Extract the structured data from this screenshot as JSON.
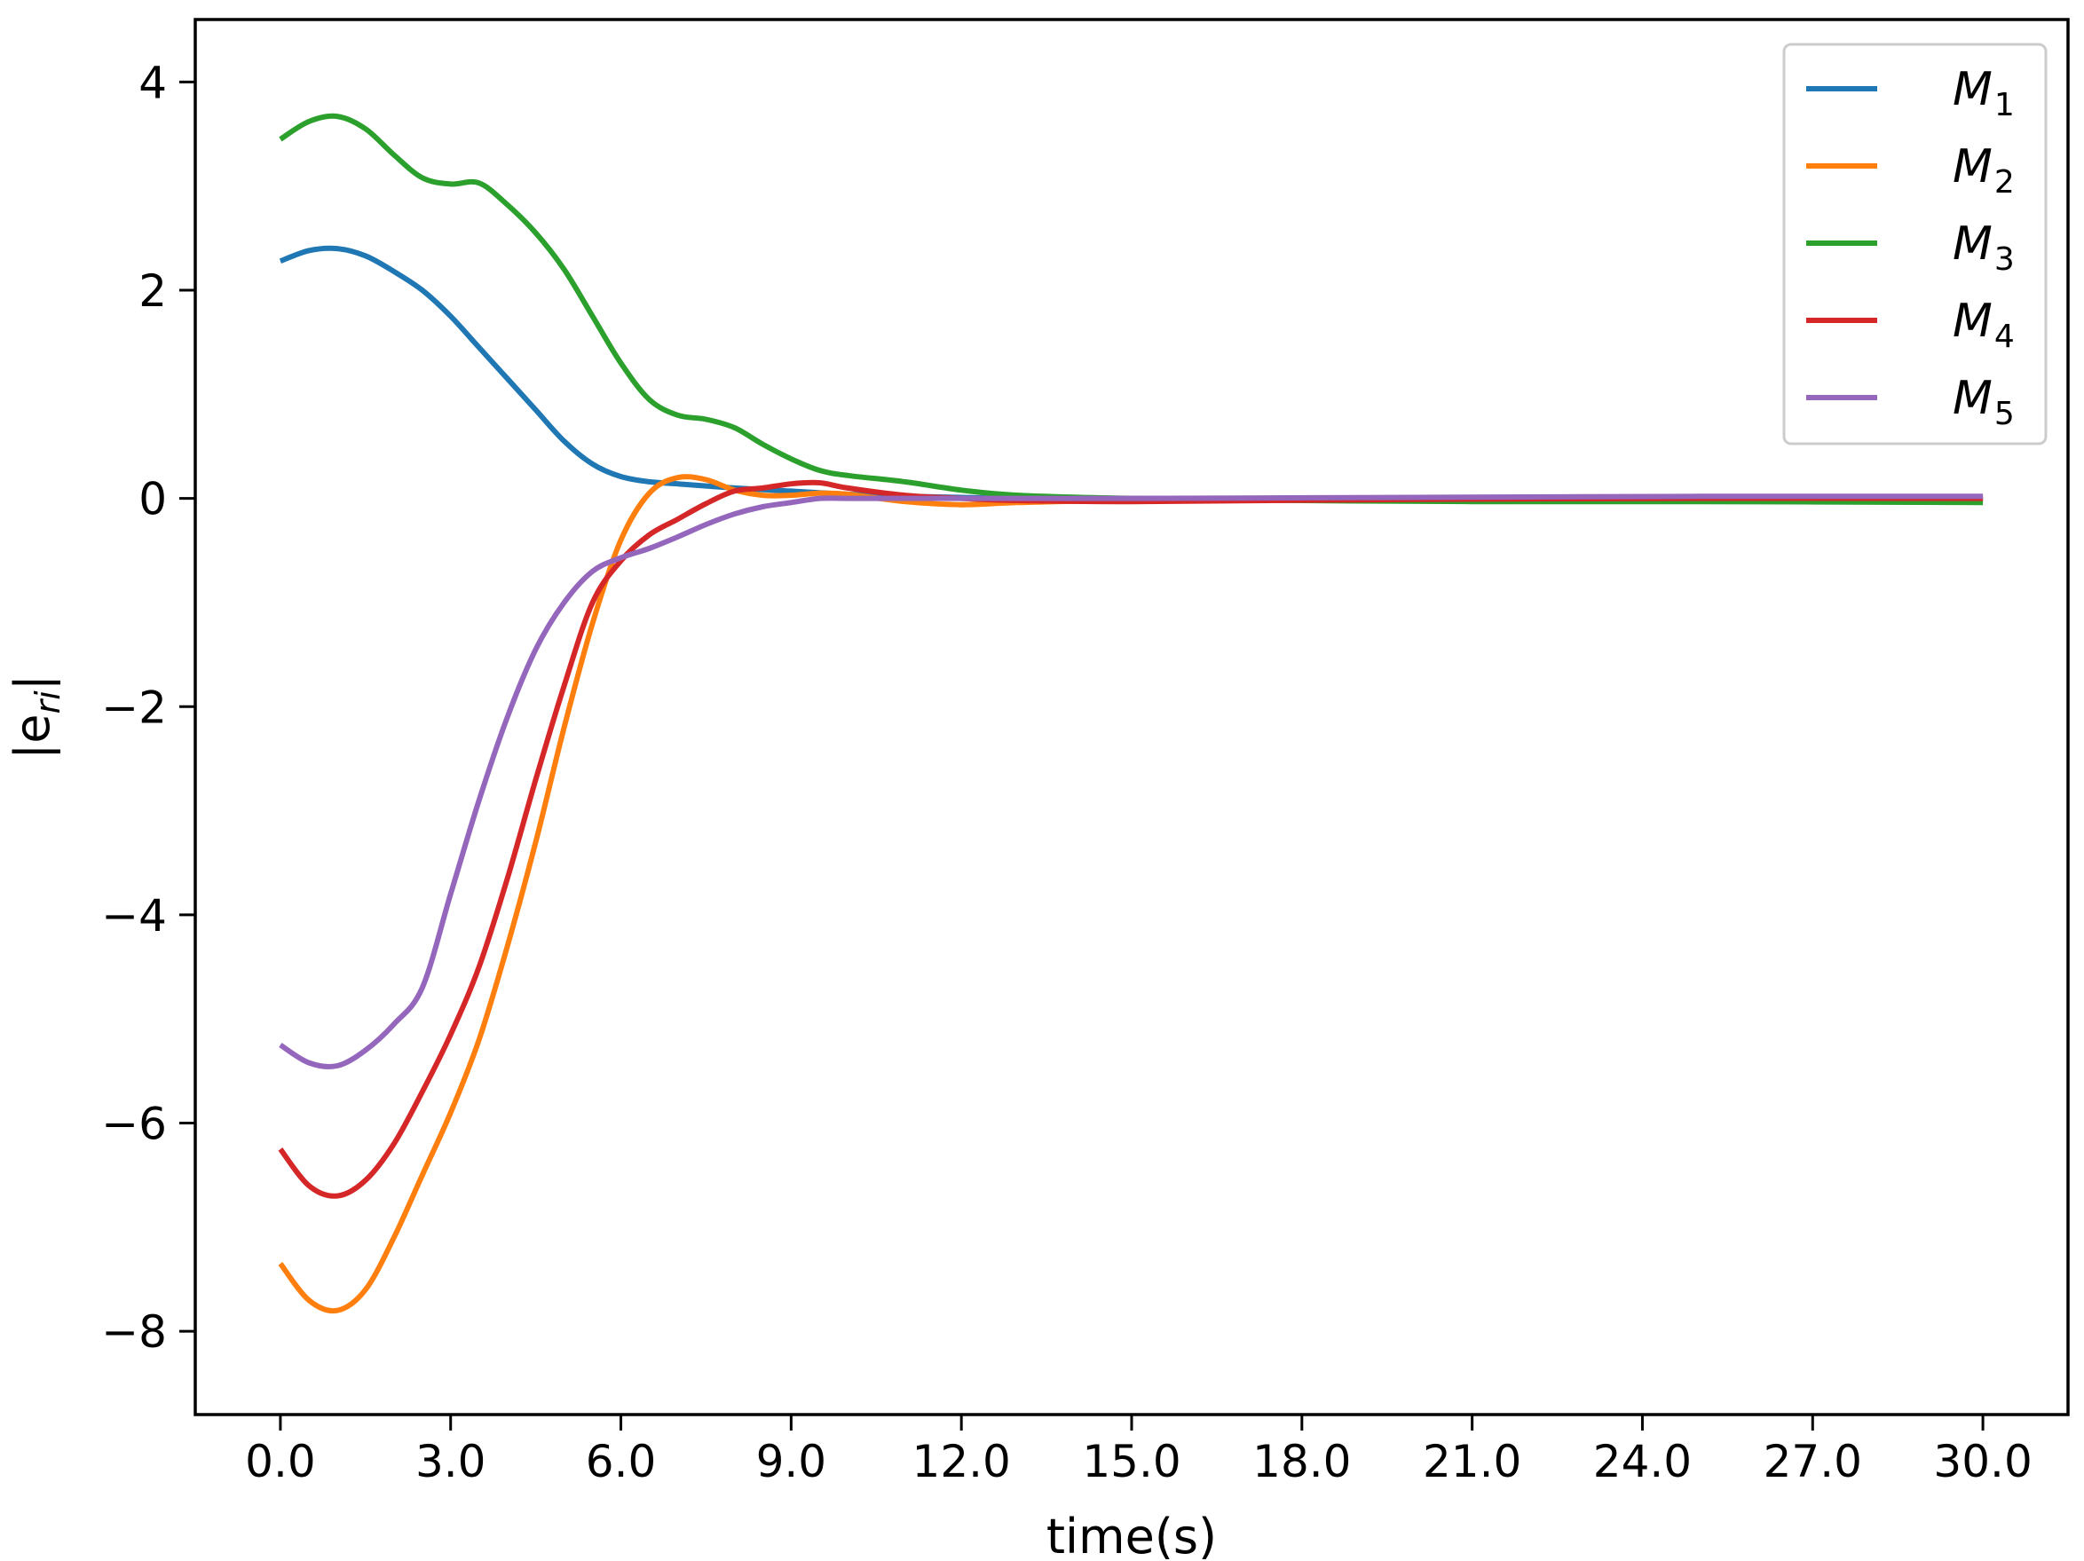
{
  "chart_data": {
    "type": "line",
    "title": "",
    "xlabel": "time(s)",
    "ylabel_main": "|e",
    "ylabel_sub": "ri",
    "ylabel_end": "|",
    "xlim": [
      -1.5,
      31.5
    ],
    "ylim": [
      -8.8,
      4.6
    ],
    "xticks": [
      0,
      3,
      6,
      9,
      12,
      15,
      18,
      21,
      24,
      27,
      30
    ],
    "xtick_labels": [
      "0.0",
      "3.0",
      "6.0",
      "9.0",
      "12.0",
      "15.0",
      "18.0",
      "21.0",
      "24.0",
      "27.0",
      "30.0"
    ],
    "yticks": [
      4,
      2,
      0,
      -2,
      -4,
      -6,
      -8
    ],
    "ytick_labels": [
      "4",
      "2",
      "0",
      "−2",
      "−4",
      "−6",
      "−8"
    ],
    "legend_position": "top-right",
    "series": [
      {
        "name": "M",
        "sub": "1",
        "color": "#1f77b4",
        "x": [
          0,
          0.5,
          1,
          1.5,
          2,
          2.5,
          3,
          3.5,
          4,
          4.5,
          5,
          5.5,
          6,
          6.5,
          7,
          7.5,
          8,
          9,
          10,
          11,
          12,
          13,
          15,
          20,
          25,
          30
        ],
        "y": [
          2.28,
          2.38,
          2.4,
          2.33,
          2.18,
          2.0,
          1.75,
          1.45,
          1.15,
          0.85,
          0.55,
          0.33,
          0.21,
          0.16,
          0.14,
          0.12,
          0.1,
          0.07,
          0.04,
          0.02,
          0.01,
          0.0,
          0.0,
          0.0,
          0.0,
          0.0
        ]
      },
      {
        "name": "M",
        "sub": "2",
        "color": "#ff7f0e",
        "x": [
          0,
          0.5,
          1,
          1.5,
          2,
          2.5,
          3,
          3.5,
          4,
          4.5,
          5,
          5.5,
          6,
          6.5,
          7,
          7.5,
          8,
          8.5,
          9,
          9.5,
          10,
          11,
          12,
          13,
          15,
          20,
          25,
          30
        ],
        "y": [
          -7.35,
          -7.7,
          -7.8,
          -7.6,
          -7.1,
          -6.5,
          -5.9,
          -5.2,
          -4.3,
          -3.3,
          -2.2,
          -1.2,
          -0.4,
          0.05,
          0.2,
          0.18,
          0.08,
          0.03,
          0.03,
          0.05,
          0.04,
          -0.03,
          -0.06,
          -0.04,
          -0.02,
          -0.01,
          0.0,
          0.0
        ]
      },
      {
        "name": "M",
        "sub": "3",
        "color": "#2ca02c",
        "x": [
          0,
          0.5,
          1,
          1.5,
          2,
          2.5,
          3,
          3.5,
          4,
          4.5,
          5,
          5.5,
          6,
          6.5,
          7,
          7.5,
          8,
          8.5,
          9,
          9.5,
          10,
          11,
          12,
          13,
          15,
          18,
          21,
          25,
          30
        ],
        "y": [
          3.45,
          3.62,
          3.67,
          3.55,
          3.3,
          3.08,
          3.02,
          3.03,
          2.82,
          2.55,
          2.2,
          1.75,
          1.3,
          0.95,
          0.8,
          0.76,
          0.68,
          0.52,
          0.38,
          0.27,
          0.22,
          0.16,
          0.08,
          0.03,
          0.0,
          -0.02,
          -0.03,
          -0.03,
          -0.04
        ]
      },
      {
        "name": "M",
        "sub": "4",
        "color": "#d62728",
        "x": [
          0,
          0.5,
          1,
          1.5,
          2,
          2.5,
          3,
          3.5,
          4,
          4.5,
          5,
          5.5,
          6,
          6.5,
          7,
          7.5,
          8,
          8.5,
          9,
          9.5,
          10,
          11,
          12,
          13,
          15,
          20,
          25,
          30
        ],
        "y": [
          -6.25,
          -6.6,
          -6.7,
          -6.55,
          -6.2,
          -5.7,
          -5.15,
          -4.5,
          -3.65,
          -2.7,
          -1.8,
          -1.0,
          -0.6,
          -0.35,
          -0.2,
          -0.05,
          0.07,
          0.1,
          0.14,
          0.15,
          0.1,
          0.03,
          0.0,
          -0.02,
          -0.03,
          -0.01,
          0.0,
          0.0
        ]
      },
      {
        "name": "M",
        "sub": "5",
        "color": "#9467bd",
        "x": [
          0,
          0.5,
          1,
          1.5,
          2,
          2.5,
          3,
          3.5,
          4,
          4.5,
          5,
          5.5,
          6,
          6.5,
          7,
          7.5,
          8,
          8.5,
          9,
          9.5,
          10,
          11,
          12,
          15,
          20,
          25,
          30
        ],
        "y": [
          -5.25,
          -5.42,
          -5.45,
          -5.3,
          -5.05,
          -4.7,
          -3.8,
          -2.9,
          -2.1,
          -1.45,
          -1.0,
          -0.7,
          -0.57,
          -0.48,
          -0.37,
          -0.25,
          -0.15,
          -0.08,
          -0.04,
          0.0,
          0.0,
          0.0,
          0.0,
          0.0,
          0.01,
          0.02,
          0.02
        ]
      }
    ]
  }
}
